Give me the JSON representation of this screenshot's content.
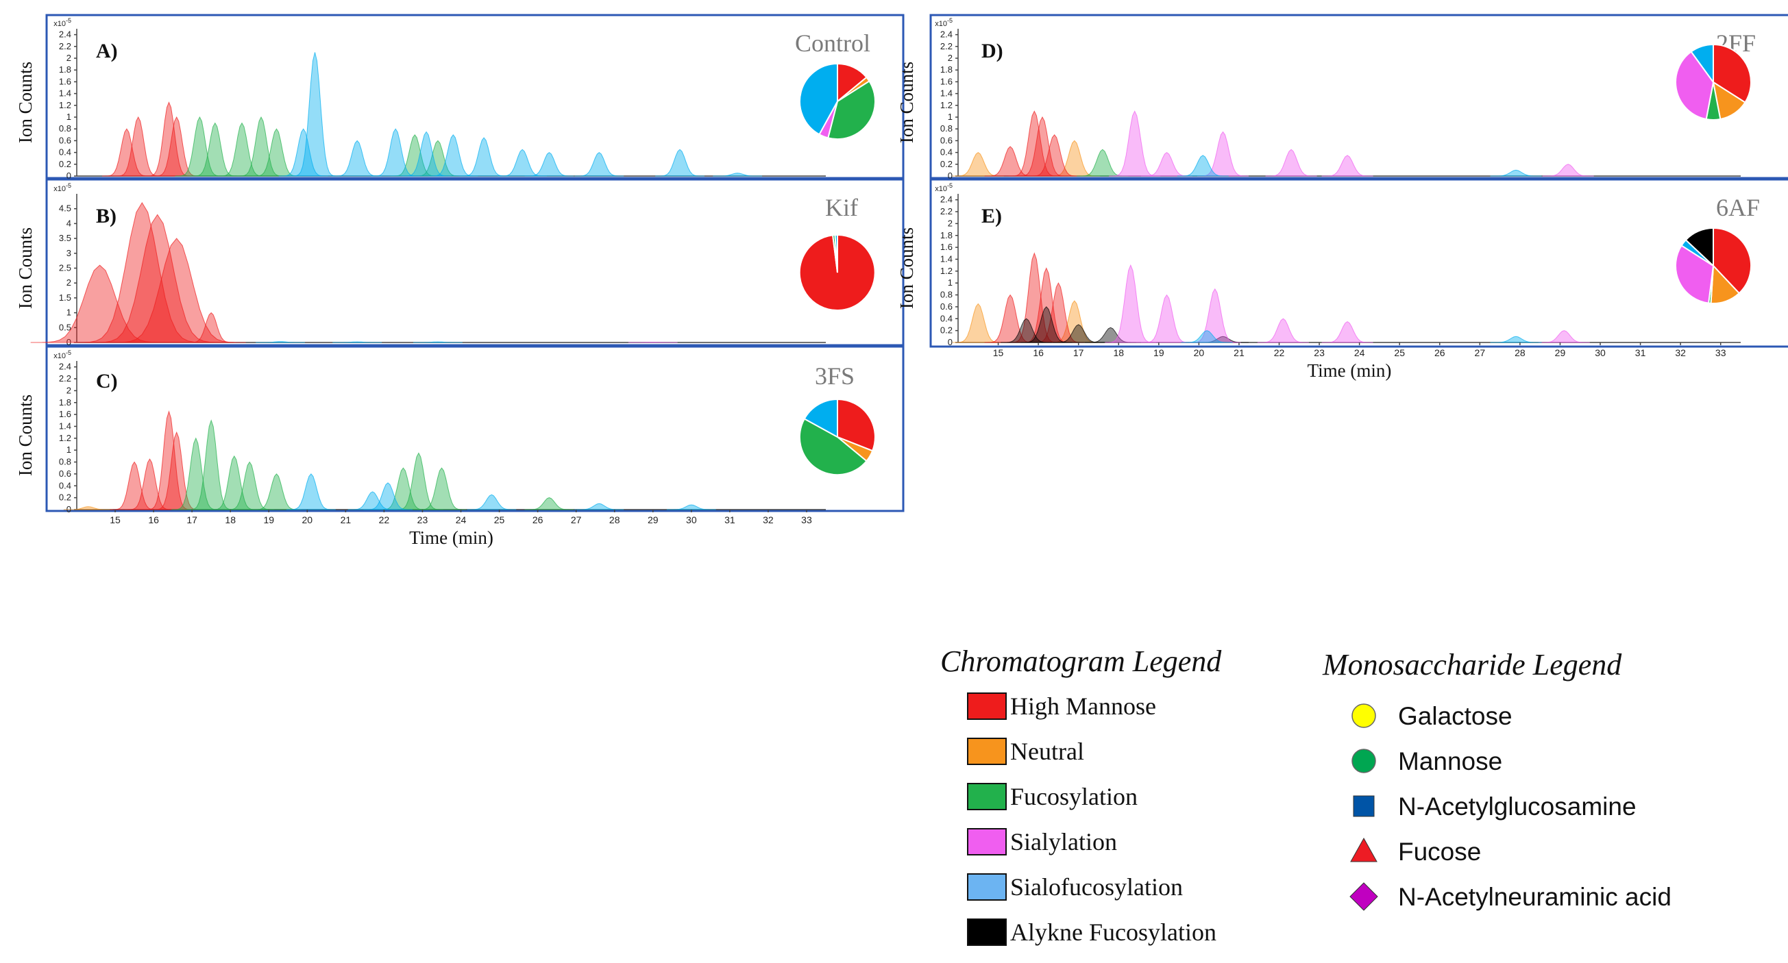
{
  "colors": {
    "high_mannose": "#ee1c1c",
    "neutral": "#f7941d",
    "fucosylation": "#22b14c",
    "sialylation": "#f05ef0",
    "sialofucosylation": "#00aeef",
    "alkyne_fucosylation": "#000000",
    "galactose": "#ffff00",
    "mannose": "#00a651",
    "glcnac": "#0054a6",
    "fucose": "#ed1c24",
    "neu5ac": "#c000c0",
    "frame": "#2c58b4"
  },
  "shared": {
    "ylabel": "Ion Counts",
    "xlabel": "Time (min)",
    "y_exponent_base": "x10",
    "y_exponent_power": "-5",
    "xticks": [
      "15",
      "16",
      "17",
      "18",
      "19",
      "20",
      "21",
      "22",
      "23",
      "24",
      "25",
      "26",
      "27",
      "28",
      "29",
      "30",
      "31",
      "32",
      "33"
    ]
  },
  "chart_data": [
    {
      "type": "area",
      "panel": "A)",
      "condition": "Control",
      "ylabel": "Ion Counts",
      "xlim": [
        14,
        33.5
      ],
      "ylim": [
        0,
        2.5
      ],
      "yticks": [
        "0",
        "0.2",
        "0.4",
        "0.6",
        "0.8",
        "1",
        "1.2",
        "1.4",
        "1.6",
        "1.8",
        "2",
        "2.2",
        "2.4"
      ],
      "series": [
        {
          "name": "High Mannose",
          "peaks": [
            [
              15.3,
              0.8
            ],
            [
              15.6,
              1.0
            ],
            [
              16.4,
              1.25
            ],
            [
              16.6,
              1.0
            ]
          ]
        },
        {
          "name": "Fucosylation",
          "peaks": [
            [
              17.2,
              1.0
            ],
            [
              17.6,
              0.9
            ],
            [
              18.3,
              0.9
            ],
            [
              18.8,
              1.0
            ],
            [
              19.2,
              0.8
            ],
            [
              22.8,
              0.7
            ],
            [
              23.4,
              0.6
            ]
          ]
        },
        {
          "name": "Sialofucosylation",
          "peaks": [
            [
              19.9,
              0.8
            ],
            [
              20.2,
              2.1
            ],
            [
              21.3,
              0.6
            ],
            [
              22.3,
              0.8
            ],
            [
              23.1,
              0.75
            ],
            [
              23.8,
              0.7
            ],
            [
              24.6,
              0.65
            ],
            [
              25.6,
              0.45
            ],
            [
              26.3,
              0.4
            ],
            [
              27.6,
              0.4
            ],
            [
              29.7,
              0.45
            ],
            [
              31.2,
              0.05
            ]
          ]
        }
      ],
      "pie": [
        {
          "name": "High Mannose",
          "value": 14
        },
        {
          "name": "Neutral",
          "value": 2
        },
        {
          "name": "Fucosylation",
          "value": 38
        },
        {
          "name": "Sialylation",
          "value": 4
        },
        {
          "name": "Sialofucosylation",
          "value": 42
        }
      ]
    },
    {
      "type": "area",
      "panel": "B)",
      "condition": "Kif",
      "ylabel": "Ion Counts",
      "xlim": [
        14,
        33.5
      ],
      "ylim": [
        0,
        5
      ],
      "yticks": [
        "0",
        "0.5",
        "1",
        "1.5",
        "2",
        "2.5",
        "3",
        "3.5",
        "4",
        "4.5"
      ],
      "series": [
        {
          "name": "High Mannose",
          "peaks": [
            [
              14.6,
              2.6
            ],
            [
              15.7,
              4.7
            ],
            [
              16.1,
              4.3
            ],
            [
              16.6,
              3.5
            ],
            [
              17.5,
              1.0
            ]
          ]
        },
        {
          "name": "Sialofucosylation",
          "peaks": [
            [
              19.3,
              0.03
            ],
            [
              21.3,
              0.02
            ],
            [
              23.4,
              0.02
            ]
          ]
        },
        {
          "name": "Sialylation",
          "peaks": [
            [
              29.0,
              0.01
            ]
          ]
        }
      ],
      "pie": [
        {
          "name": "High Mannose",
          "value": 98
        },
        {
          "name": "Fucosylation",
          "value": 1
        },
        {
          "name": "Sialofucosylation",
          "value": 1
        }
      ]
    },
    {
      "type": "area",
      "panel": "C)",
      "condition": "3FS",
      "ylabel": "Ion Counts",
      "xlim": [
        14,
        33.5
      ],
      "ylim": [
        0,
        2.5
      ],
      "yticks": [
        "0",
        "0.2",
        "0.4",
        "0.6",
        "0.8",
        "1",
        "1.2",
        "1.4",
        "1.6",
        "1.8",
        "2",
        "2.2",
        "2.4"
      ],
      "series": [
        {
          "name": "Neutral",
          "peaks": [
            [
              14.3,
              0.05
            ]
          ]
        },
        {
          "name": "High Mannose",
          "peaks": [
            [
              15.5,
              0.8
            ],
            [
              15.9,
              0.85
            ],
            [
              16.4,
              1.65
            ],
            [
              16.6,
              1.3
            ]
          ]
        },
        {
          "name": "Fucosylation",
          "peaks": [
            [
              17.1,
              1.2
            ],
            [
              17.5,
              1.5
            ],
            [
              18.1,
              0.9
            ],
            [
              18.5,
              0.8
            ],
            [
              19.2,
              0.6
            ],
            [
              22.5,
              0.7
            ],
            [
              22.9,
              0.95
            ],
            [
              23.5,
              0.7
            ],
            [
              26.3,
              0.2
            ]
          ]
        },
        {
          "name": "Sialofucosylation",
          "peaks": [
            [
              20.1,
              0.6
            ],
            [
              21.7,
              0.3
            ],
            [
              22.1,
              0.45
            ],
            [
              24.8,
              0.25
            ],
            [
              27.6,
              0.1
            ],
            [
              30.0,
              0.08
            ]
          ]
        }
      ],
      "pie": [
        {
          "name": "High Mannose",
          "value": 31
        },
        {
          "name": "Neutral",
          "value": 5
        },
        {
          "name": "Fucosylation",
          "value": 47
        },
        {
          "name": "Sialofucosylation",
          "value": 17
        }
      ]
    },
    {
      "type": "area",
      "panel": "D)",
      "condition": "2FF",
      "ylabel": "Ion Counts",
      "xlim": [
        14,
        33.5
      ],
      "ylim": [
        0,
        2.5
      ],
      "yticks": [
        "0",
        "0.2",
        "0.4",
        "0.6",
        "0.8",
        "1",
        "1.2",
        "1.4",
        "1.6",
        "1.8",
        "2",
        "2.2",
        "2.4"
      ],
      "series": [
        {
          "name": "Neutral",
          "peaks": [
            [
              14.5,
              0.4
            ],
            [
              16.9,
              0.6
            ]
          ]
        },
        {
          "name": "High Mannose",
          "peaks": [
            [
              15.3,
              0.5
            ],
            [
              15.9,
              1.1
            ],
            [
              16.1,
              1.0
            ],
            [
              16.4,
              0.7
            ]
          ]
        },
        {
          "name": "Fucosylation",
          "peaks": [
            [
              17.6,
              0.45
            ]
          ]
        },
        {
          "name": "Sialylation",
          "peaks": [
            [
              18.4,
              1.1
            ],
            [
              19.2,
              0.4
            ],
            [
              20.6,
              0.75
            ],
            [
              22.3,
              0.45
            ],
            [
              23.7,
              0.35
            ],
            [
              29.2,
              0.2
            ]
          ]
        },
        {
          "name": "Sialofucosylation",
          "peaks": [
            [
              20.1,
              0.35
            ],
            [
              27.9,
              0.1
            ]
          ]
        }
      ],
      "pie": [
        {
          "name": "High Mannose",
          "value": 34
        },
        {
          "name": "Neutral",
          "value": 13
        },
        {
          "name": "Fucosylation",
          "value": 6
        },
        {
          "name": "Sialylation",
          "value": 37
        },
        {
          "name": "Sialofucosylation",
          "value": 10
        }
      ]
    },
    {
      "type": "area",
      "panel": "E)",
      "condition": "6AF",
      "ylabel": "Ion Counts",
      "xlim": [
        14,
        33.5
      ],
      "ylim": [
        0,
        2.5
      ],
      "yticks": [
        "0",
        "0.2",
        "0.4",
        "0.6",
        "0.8",
        "1",
        "1.2",
        "1.4",
        "1.6",
        "1.8",
        "2",
        "2.2",
        "2.4"
      ],
      "series": [
        {
          "name": "Neutral",
          "peaks": [
            [
              14.5,
              0.65
            ],
            [
              16.9,
              0.7
            ]
          ]
        },
        {
          "name": "High Mannose",
          "peaks": [
            [
              15.3,
              0.8
            ],
            [
              15.9,
              1.5
            ],
            [
              16.2,
              1.25
            ],
            [
              16.5,
              1.0
            ]
          ]
        },
        {
          "name": "Alkyne Fucosylation",
          "peaks": [
            [
              15.7,
              0.4
            ],
            [
              16.2,
              0.6
            ],
            [
              17.0,
              0.3
            ],
            [
              17.8,
              0.25
            ],
            [
              20.6,
              0.1
            ]
          ]
        },
        {
          "name": "Sialylation",
          "peaks": [
            [
              18.3,
              1.3
            ],
            [
              19.2,
              0.8
            ],
            [
              20.4,
              0.9
            ],
            [
              22.1,
              0.4
            ],
            [
              23.7,
              0.35
            ],
            [
              29.1,
              0.2
            ]
          ]
        },
        {
          "name": "Sialofucosylation",
          "peaks": [
            [
              20.2,
              0.2
            ],
            [
              27.9,
              0.1
            ]
          ]
        }
      ],
      "pie": [
        {
          "name": "High Mannose",
          "value": 38
        },
        {
          "name": "Neutral",
          "value": 13
        },
        {
          "name": "Fucosylation",
          "value": 1
        },
        {
          "name": "Sialylation",
          "value": 32
        },
        {
          "name": "Sialofucosylation",
          "value": 3
        },
        {
          "name": "Alkyne Fucosylation",
          "value": 13
        }
      ]
    }
  ],
  "chromatogram_legend": {
    "title": "Chromatogram Legend",
    "items": [
      {
        "label": "High Mannose",
        "color": "#ee1c1c"
      },
      {
        "label": "Neutral",
        "color": "#f7941d"
      },
      {
        "label": "Fucosylation",
        "color": "#22b14c"
      },
      {
        "label": "Sialylation",
        "color": "#f05ef0"
      },
      {
        "label": "Sialofucosylation",
        "color": "#6cb4f2"
      },
      {
        "label": "Alykne Fucosylation",
        "color": "#000000"
      }
    ]
  },
  "monosaccharide_legend": {
    "title": "Monosaccharide Legend",
    "items": [
      {
        "label": "Galactose",
        "shape": "circle",
        "color": "#ffff00"
      },
      {
        "label": "Mannose",
        "shape": "circle",
        "color": "#00a651"
      },
      {
        "label": "N-Acetylglucosamine",
        "shape": "square",
        "color": "#0054a6"
      },
      {
        "label": "Fucose",
        "shape": "triangle",
        "color": "#ed1c24"
      },
      {
        "label": "N-Acetylneuraminic acid",
        "shape": "diamond",
        "color": "#c000c0"
      }
    ]
  }
}
